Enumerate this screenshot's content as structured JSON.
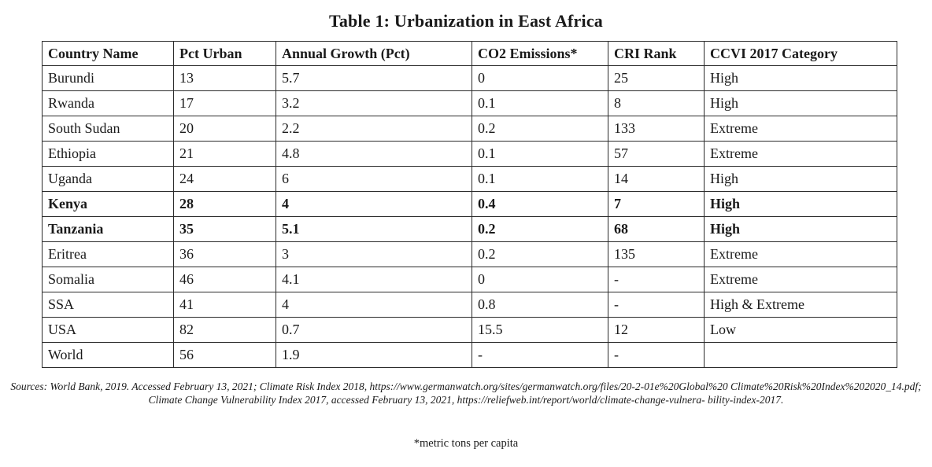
{
  "title": "Table 1: Urbanization in East Africa",
  "headers": [
    "Country Name",
    "Pct Urban",
    "Annual Growth (Pct)",
    "CO2 Emissions*",
    "CRI Rank",
    "CCVI 2017 Category"
  ],
  "rows": [
    {
      "bold": false,
      "cells": [
        "Burundi",
        "13",
        "5.7",
        "0",
        "25",
        "High"
      ]
    },
    {
      "bold": false,
      "cells": [
        "Rwanda",
        "17",
        "3.2",
        "0.1",
        "8",
        "High"
      ]
    },
    {
      "bold": false,
      "cells": [
        "South Sudan",
        "20",
        "2.2",
        "0.2",
        "133",
        "Extreme"
      ]
    },
    {
      "bold": false,
      "cells": [
        "Ethiopia",
        "21",
        "4.8",
        "0.1",
        "57",
        "Extreme"
      ]
    },
    {
      "bold": false,
      "cells": [
        "Uganda",
        "24",
        "6",
        "0.1",
        "14",
        "High"
      ]
    },
    {
      "bold": true,
      "cells": [
        "Kenya",
        "28",
        "4",
        "0.4",
        "7",
        "High"
      ]
    },
    {
      "bold": true,
      "cells": [
        "Tanzania",
        "35",
        "5.1",
        "0.2",
        "68",
        "High"
      ]
    },
    {
      "bold": false,
      "cells": [
        "Eritrea",
        "36",
        "3",
        "0.2",
        "135",
        "Extreme"
      ]
    },
    {
      "bold": false,
      "cells": [
        "Somalia",
        "46",
        "4.1",
        "0",
        "-",
        "Extreme"
      ]
    },
    {
      "bold": false,
      "cells": [
        "SSA",
        "41",
        "4",
        "0.8",
        "-",
        "High & Extreme"
      ]
    },
    {
      "bold": false,
      "cells": [
        "USA",
        "82",
        "0.7",
        "15.5",
        "12",
        "Low"
      ]
    },
    {
      "bold": false,
      "cells": [
        "World",
        "56",
        "1.9",
        "-",
        "-",
        ""
      ]
    }
  ],
  "sources": "Sources: World Bank, 2019. Accessed February 13, 2021; Climate Risk Index 2018, https://www.germanwatch.org/sites/germanwatch.org/files/20-2-01e%20Global%20 Climate%20Risk%20Index%202020_14.pdf; Climate Change Vulnerability Index 2017, accessed February 13, 2021, https://reliefweb.int/report/world/climate-change-vulnera- bility-index-2017.",
  "footnote": "*metric tons per capita"
}
